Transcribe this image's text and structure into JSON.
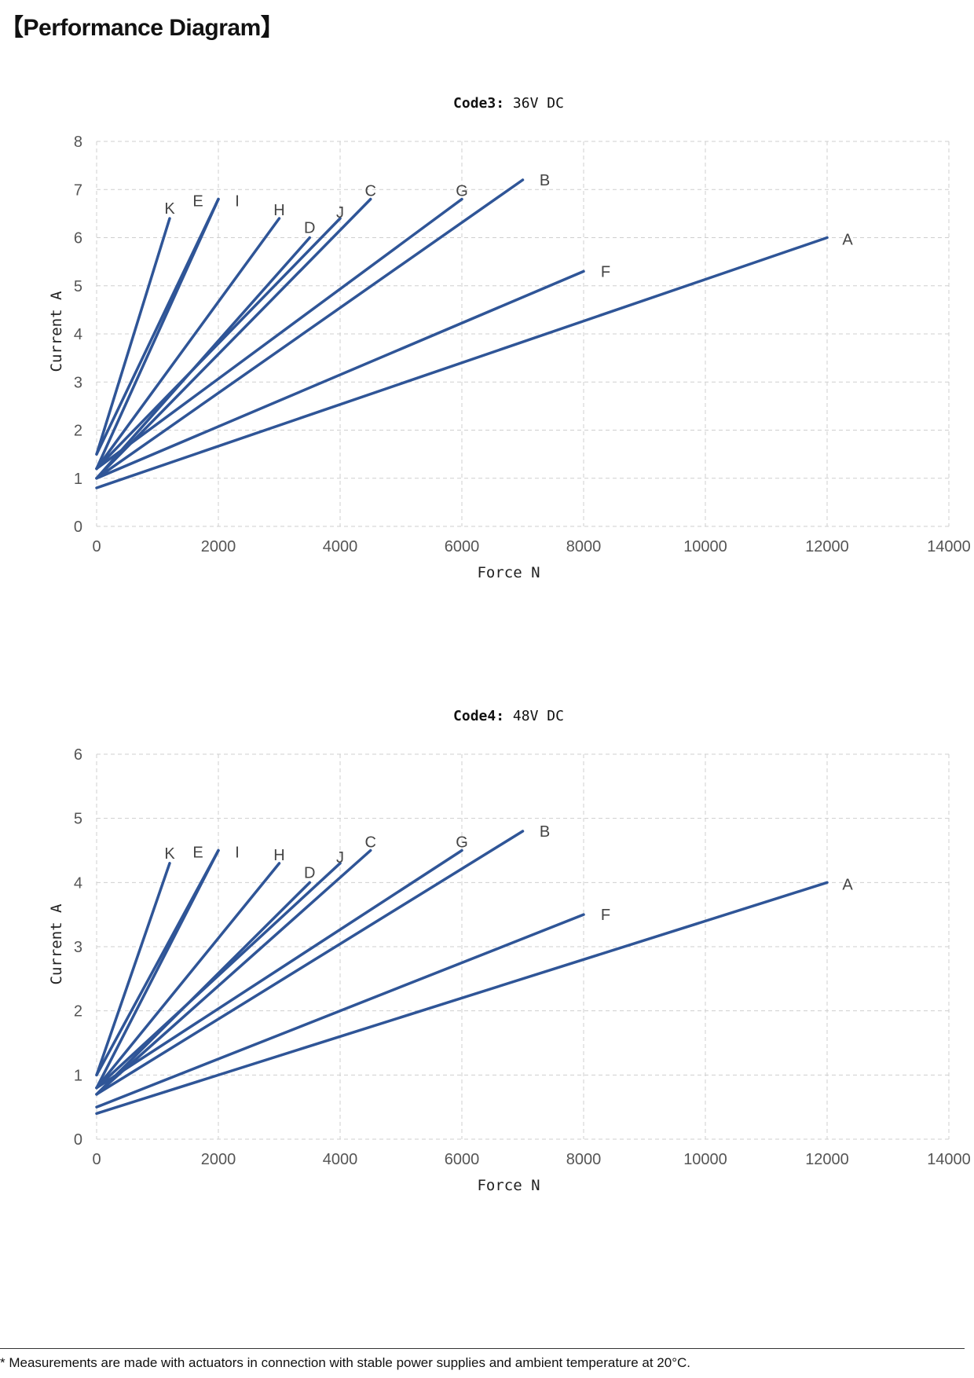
{
  "page": {
    "heading": "【Performance Diagram】",
    "footnote": "* Measurements are made with actuators in connection with stable power supplies and ambient temperature at 20°C."
  },
  "colors": {
    "series": "#2f5597",
    "grid": "#cfcfcf"
  },
  "chart_data": [
    {
      "type": "line",
      "title_bold": "Code3:",
      "title_rest": " 36V DC",
      "xlabel": "Force N",
      "ylabel": "Current A",
      "xlim": [
        0,
        14000
      ],
      "ylim": [
        0,
        8
      ],
      "xticks": [
        0,
        2000,
        4000,
        6000,
        8000,
        10000,
        12000,
        14000
      ],
      "yticks": [
        0,
        1,
        2,
        3,
        4,
        5,
        6,
        7,
        8
      ],
      "grid": true,
      "series": [
        {
          "name": "A",
          "x": [
            0,
            12000
          ],
          "y": [
            0.8,
            6.0
          ]
        },
        {
          "name": "B",
          "x": [
            0,
            7000
          ],
          "y": [
            1.0,
            7.2
          ]
        },
        {
          "name": "C",
          "x": [
            0,
            4500
          ],
          "y": [
            1.0,
            6.8
          ]
        },
        {
          "name": "D",
          "x": [
            0,
            3500
          ],
          "y": [
            1.0,
            6.0
          ]
        },
        {
          "name": "E",
          "x": [
            0,
            2000
          ],
          "y": [
            1.2,
            6.8
          ]
        },
        {
          "name": "F",
          "x": [
            0,
            8000
          ],
          "y": [
            1.0,
            5.3
          ]
        },
        {
          "name": "G",
          "x": [
            0,
            6000
          ],
          "y": [
            1.2,
            6.8
          ]
        },
        {
          "name": "H",
          "x": [
            0,
            3000
          ],
          "y": [
            1.2,
            6.4
          ]
        },
        {
          "name": "I",
          "x": [
            0,
            2000
          ],
          "y": [
            1.5,
            6.8
          ]
        },
        {
          "name": "J",
          "x": [
            0,
            4000
          ],
          "y": [
            1.2,
            6.4
          ]
        },
        {
          "name": "K",
          "x": [
            0,
            1200
          ],
          "y": [
            1.5,
            6.4
          ]
        }
      ]
    },
    {
      "type": "line",
      "title_bold": "Code4:",
      "title_rest": " 48V DC",
      "xlabel": "Force N",
      "ylabel": "Current A",
      "xlim": [
        0,
        14000
      ],
      "ylim": [
        0,
        6
      ],
      "xticks": [
        0,
        2000,
        4000,
        6000,
        8000,
        10000,
        12000,
        14000
      ],
      "yticks": [
        0,
        1,
        2,
        3,
        4,
        5,
        6
      ],
      "grid": true,
      "series": [
        {
          "name": "A",
          "x": [
            0,
            12000
          ],
          "y": [
            0.4,
            4.0
          ]
        },
        {
          "name": "B",
          "x": [
            0,
            7000
          ],
          "y": [
            0.7,
            4.8
          ]
        },
        {
          "name": "C",
          "x": [
            0,
            4500
          ],
          "y": [
            0.7,
            4.5
          ]
        },
        {
          "name": "D",
          "x": [
            0,
            3500
          ],
          "y": [
            0.7,
            4.0
          ]
        },
        {
          "name": "E",
          "x": [
            0,
            2000
          ],
          "y": [
            0.8,
            4.5
          ]
        },
        {
          "name": "F",
          "x": [
            0,
            8000
          ],
          "y": [
            0.5,
            3.5
          ]
        },
        {
          "name": "G",
          "x": [
            0,
            6000
          ],
          "y": [
            0.8,
            4.5
          ]
        },
        {
          "name": "H",
          "x": [
            0,
            3000
          ],
          "y": [
            0.8,
            4.3
          ]
        },
        {
          "name": "I",
          "x": [
            0,
            2000
          ],
          "y": [
            1.0,
            4.5
          ]
        },
        {
          "name": "J",
          "x": [
            0,
            4000
          ],
          "y": [
            0.8,
            4.3
          ]
        },
        {
          "name": "K",
          "x": [
            0,
            1200
          ],
          "y": [
            1.0,
            4.3
          ]
        }
      ]
    }
  ]
}
